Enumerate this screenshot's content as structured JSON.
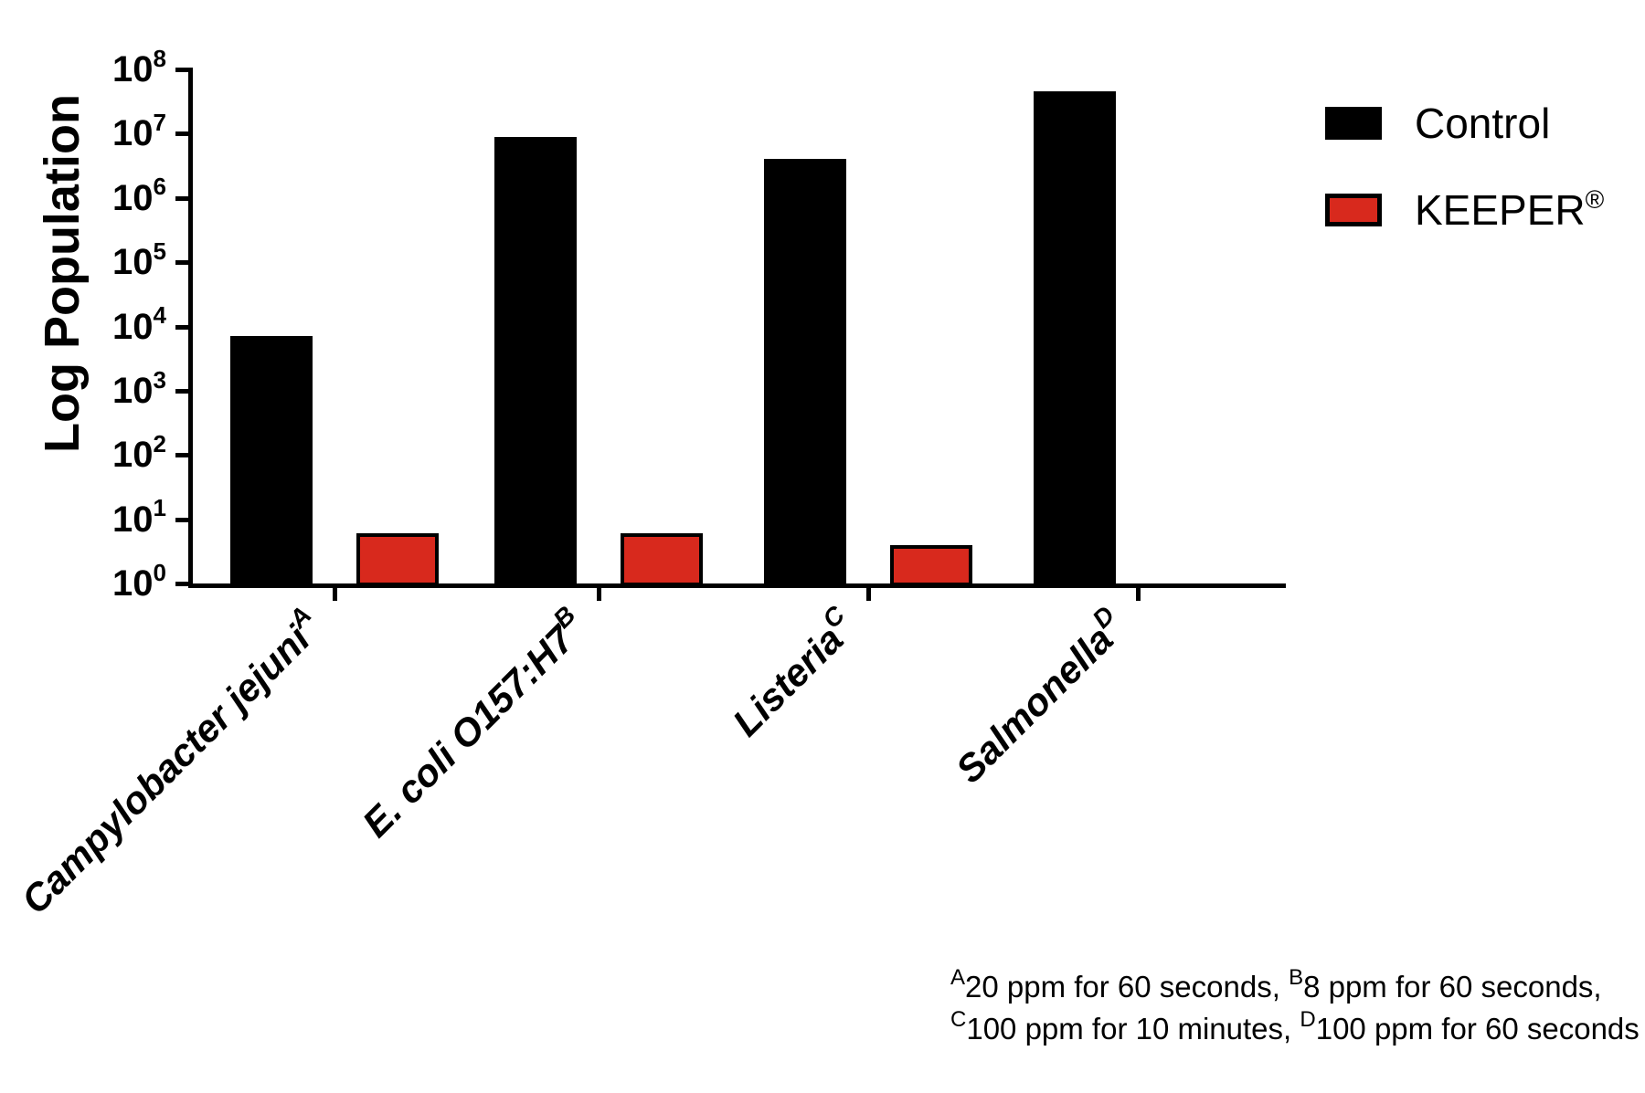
{
  "chart_data": {
    "type": "bar",
    "title": "",
    "ylabel": "Log Population",
    "xlabel": "",
    "yscale": "log",
    "ylim": [
      1,
      100000000
    ],
    "ytick_base": "10",
    "ytick_exponents": [
      8,
      7,
      6,
      5,
      4,
      3,
      2,
      1,
      0
    ],
    "grid": false,
    "legend_position": "top-right",
    "categories": [
      {
        "label": "Campylobacter jejuni",
        "superscript": "A"
      },
      {
        "label": "E. coli O157:H7",
        "superscript": "B"
      },
      {
        "label": "Listeria",
        "superscript": "C"
      },
      {
        "label": "Salmonella",
        "superscript": "D"
      }
    ],
    "series": [
      {
        "name": "Control",
        "suffix": "",
        "color": "#000000",
        "values": [
          7000,
          9000000,
          4000000,
          45000000
        ]
      },
      {
        "name": "KEEPER",
        "suffix": "®",
        "color": "#D8291D",
        "values": [
          6,
          6,
          4,
          null
        ]
      }
    ],
    "footnote_lines": [
      [
        {
          "sup": "A",
          "text": "20 ppm for 60 seconds, "
        },
        {
          "sup": "B",
          "text": "8 ppm for 60 seconds,"
        }
      ],
      [
        {
          "sup": "C",
          "text": "100 ppm for 10 minutes, "
        },
        {
          "sup": "D",
          "text": "100 ppm for 60 seconds"
        }
      ]
    ]
  },
  "colors": {
    "background": "#FFFFFF",
    "axis": "#000000",
    "control_bar": "#000000",
    "keeper_bar": "#D8291D",
    "text": "#000000"
  }
}
